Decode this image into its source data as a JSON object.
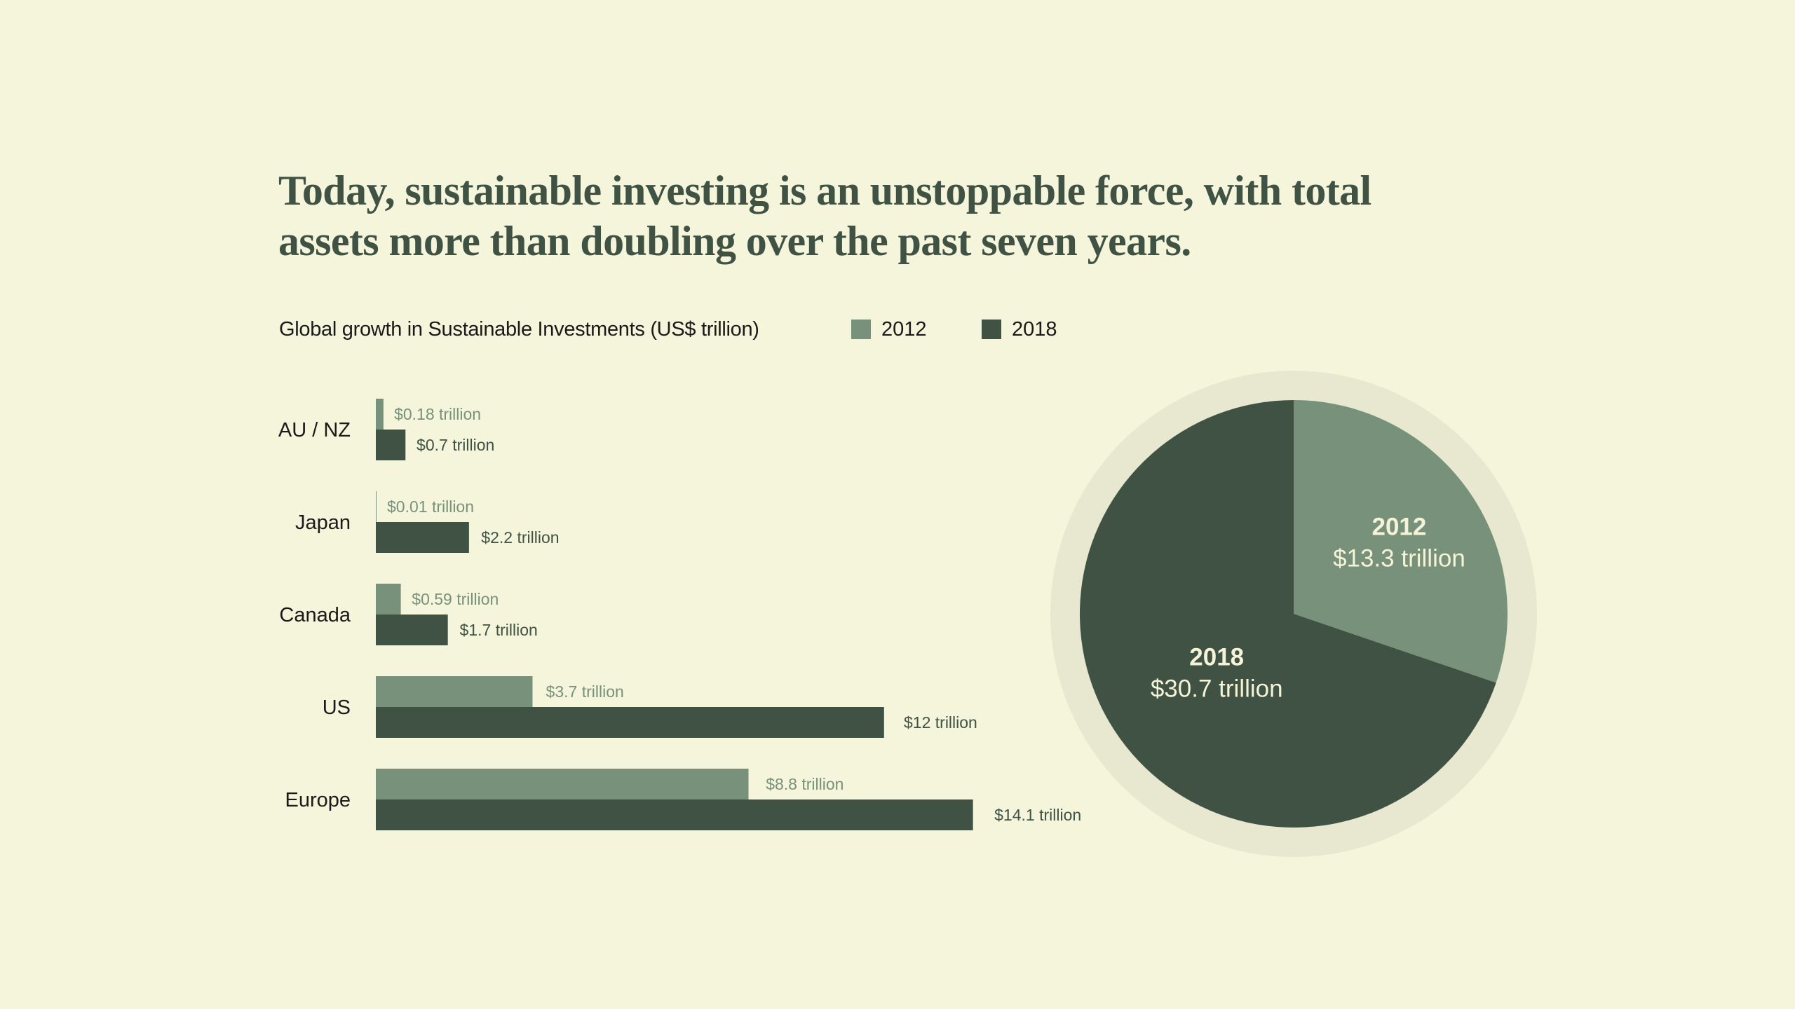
{
  "headline": {
    "line1": "Today, sustainable investing is an unstoppable force, with total",
    "line2": "assets more than doubling over the past seven years."
  },
  "colors": {
    "background": "#f5f5dc",
    "series_2012": "#78917a",
    "series_2018": "#3f5243",
    "pie_ring": "#e8e8d0",
    "pie_label_text": "#f5f3d7",
    "category_text": "#1a1a1a"
  },
  "chart_data": [
    {
      "type": "bar",
      "orientation": "horizontal",
      "title": "Global growth in Sustainable Investments (US$ trillion)",
      "xlabel": "",
      "ylabel": "",
      "legend": {
        "placement": "top",
        "entries": [
          "2012",
          "2018"
        ]
      },
      "grid": false,
      "xlim": [
        0,
        14.1
      ],
      "categories": [
        "AU / NZ",
        "Japan",
        "Canada",
        "US",
        "Europe"
      ],
      "series": [
        {
          "name": "2012",
          "values": [
            0.18,
            0.01,
            0.59,
            3.7,
            8.8
          ],
          "labels": [
            "$0.18 trillion",
            "$0.01 trillion",
            "$0.59 trillion",
            "$3.7 trillion",
            "$8.8 trillion"
          ]
        },
        {
          "name": "2018",
          "values": [
            0.7,
            2.2,
            1.7,
            12,
            14.1
          ],
          "labels": [
            "$0.7 trillion",
            "$2.2 trillion",
            "$1.7 trillion",
            "$12 trillion",
            "$14.1 trillion"
          ]
        }
      ]
    },
    {
      "type": "pie",
      "title": "",
      "slices": [
        {
          "label": "2012",
          "value": 13.3,
          "value_label": "$13.3 trillion"
        },
        {
          "label": "2018",
          "value": 30.7,
          "value_label": "$30.7 trillion"
        }
      ]
    }
  ]
}
